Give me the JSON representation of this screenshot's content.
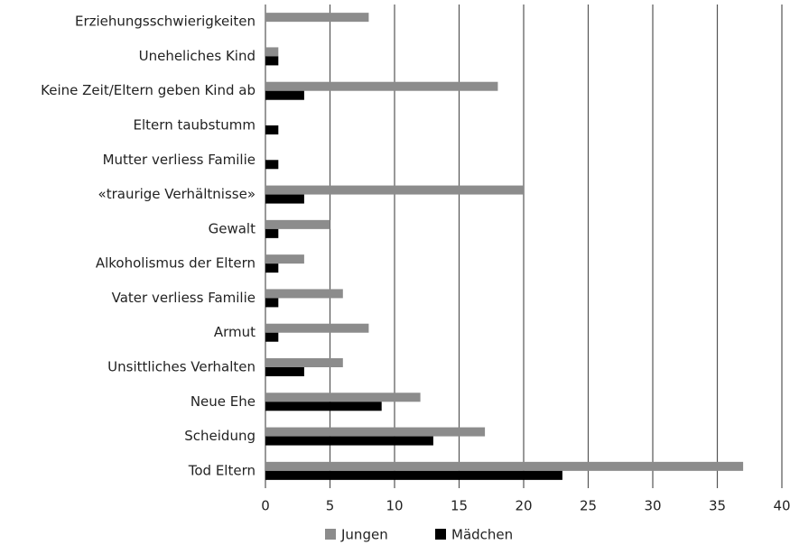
{
  "chart_data": {
    "type": "bar",
    "orientation": "horizontal",
    "categories": [
      "Erziehungsschwierigkeiten",
      "Uneheliches Kind",
      "Keine Zeit/Eltern geben Kind ab",
      "Eltern taubstumm",
      "Mutter verliess Familie",
      "«traurige Verhältnisse»",
      "Gewalt",
      "Alkoholismus der Eltern",
      "Vater verliess Familie",
      "Armut",
      "Unsittliches Verhalten",
      "Neue Ehe",
      "Scheidung",
      "Tod Eltern"
    ],
    "series": [
      {
        "name": "Jungen",
        "color": "#8c8c8c",
        "values": [
          8,
          1,
          18,
          0,
          0,
          20,
          5,
          3,
          6,
          8,
          6,
          12,
          17,
          37
        ]
      },
      {
        "name": "Mädchen",
        "color": "#000000",
        "values": [
          0,
          1,
          3,
          1,
          1,
          3,
          1,
          1,
          1,
          1,
          3,
          9,
          13,
          23
        ]
      }
    ],
    "xlim": [
      0,
      40
    ],
    "xticks": [
      0,
      5,
      10,
      15,
      20,
      25,
      30,
      35,
      40
    ],
    "grid": true,
    "legend": "bottom"
  }
}
